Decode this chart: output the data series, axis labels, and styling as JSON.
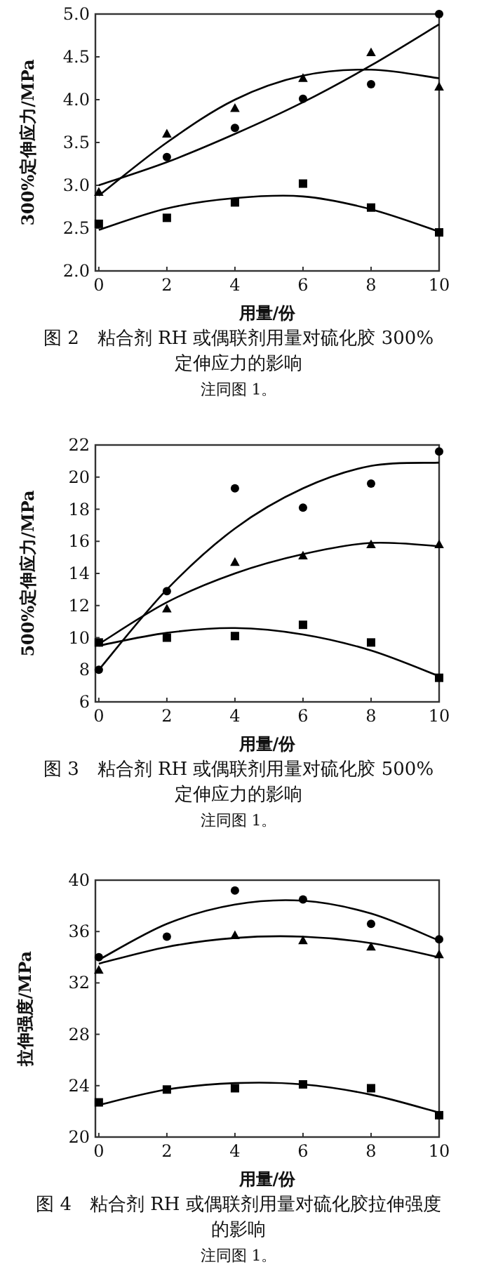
{
  "chart_data": [
    {
      "type": "scatter",
      "title": "图 2　粘合剂 RH 或偶联剂用量对硫化胶 300%定伸应力的影响",
      "xlabel": "用量/份",
      "ylabel": "300%定伸应力/MPa",
      "annotations": [
        "注同图 1。"
      ],
      "x": [
        0,
        2,
        4,
        6,
        8,
        10
      ],
      "xlim": [
        -0.1,
        10
      ],
      "ylim": [
        2.0,
        5.0
      ],
      "xticks": [
        0,
        2,
        4,
        6,
        8,
        10
      ],
      "yticks": [
        {
          "value": 2.0,
          "label": "2.0"
        },
        2.5,
        {
          "value": 3.0,
          "label": "3.0"
        },
        3.5,
        {
          "value": 4.0,
          "label": "4.0"
        },
        4.5,
        {
          "value": 5.0,
          "label": "5.0"
        }
      ],
      "grid": false,
      "series": [
        {
          "type": "scatter",
          "marker": "circle",
          "color": "#000000",
          "values": [
            null,
            3.33,
            3.67,
            4.01,
            4.18,
            5.0
          ]
        },
        {
          "type": "scatter",
          "marker": "triangle",
          "color": "#000000",
          "values": [
            2.92,
            3.6,
            3.9,
            4.25,
            4.55,
            4.15
          ]
        },
        {
          "type": "scatter",
          "marker": "square",
          "color": "#000000",
          "values": [
            2.55,
            2.62,
            2.8,
            3.02,
            2.74,
            2.45
          ]
        },
        {
          "type": "line",
          "marker": "none",
          "color": "#000000",
          "values": [
            3.0,
            3.27,
            3.6,
            3.97,
            4.4,
            4.88
          ]
        },
        {
          "type": "line",
          "marker": "none",
          "color": "#000000",
          "values": [
            2.88,
            3.5,
            4.0,
            4.28,
            4.35,
            4.25
          ]
        },
        {
          "type": "line",
          "marker": "none",
          "color": "#000000",
          "values": [
            2.48,
            2.73,
            2.85,
            2.87,
            2.72,
            2.46
          ]
        }
      ]
    },
    {
      "type": "scatter",
      "title": "图 3　粘合剂 RH 或偶联剂用量对硫化胶 500%定伸应力的影响",
      "xlabel": "用量/份",
      "ylabel": "500%定伸应力/MPa",
      "annotations": [
        "注同图 1。"
      ],
      "x": [
        0,
        2,
        4,
        6,
        8,
        10
      ],
      "xlim": [
        -0.1,
        10
      ],
      "ylim": [
        6,
        22
      ],
      "xticks": [
        0,
        2,
        4,
        6,
        8,
        10
      ],
      "yticks": [
        6,
        8,
        10,
        12,
        14,
        16,
        18,
        20,
        22
      ],
      "grid": false,
      "series": [
        {
          "type": "scatter",
          "marker": "circle",
          "color": "#000000",
          "values": [
            8.0,
            12.9,
            19.3,
            18.1,
            19.6,
            21.6
          ]
        },
        {
          "type": "scatter",
          "marker": "triangle",
          "color": "#000000",
          "values": [
            null,
            11.8,
            14.7,
            15.1,
            15.8,
            15.8
          ]
        },
        {
          "type": "scatter",
          "marker": "square",
          "color": "#000000",
          "values": [
            9.7,
            10.0,
            10.1,
            10.8,
            9.7,
            7.5
          ]
        },
        {
          "type": "line",
          "marker": "none",
          "color": "#000000",
          "values": [
            8.0,
            13.0,
            16.8,
            19.3,
            20.7,
            20.9
          ]
        },
        {
          "type": "line",
          "marker": "none",
          "color": "#000000",
          "values": [
            9.6,
            12.2,
            14.0,
            15.2,
            15.9,
            15.7
          ]
        },
        {
          "type": "line",
          "marker": "none",
          "color": "#000000",
          "values": [
            9.5,
            10.3,
            10.6,
            10.2,
            9.2,
            7.6
          ]
        }
      ]
    },
    {
      "type": "scatter",
      "title": "图 4　粘合剂 RH 或偶联剂用量对硫化胶拉伸强度的影响",
      "xlabel": "用量/份",
      "ylabel": "拉伸强度/MPa",
      "annotations": [
        "注同图 1。"
      ],
      "x": [
        0,
        2,
        4,
        6,
        8,
        10
      ],
      "xlim": [
        -0.1,
        10
      ],
      "ylim": [
        20,
        40
      ],
      "xticks": [
        0,
        2,
        4,
        6,
        8,
        10
      ],
      "yticks": [
        20,
        24,
        28,
        32,
        36,
        40
      ],
      "grid": false,
      "series": [
        {
          "type": "scatter",
          "marker": "circle",
          "color": "#000000",
          "values": [
            34.0,
            35.6,
            39.2,
            38.5,
            36.6,
            35.4
          ]
        },
        {
          "type": "scatter",
          "marker": "triangle",
          "color": "#000000",
          "values": [
            33.0,
            null,
            35.7,
            35.3,
            34.8,
            34.2
          ]
        },
        {
          "type": "scatter",
          "marker": "square",
          "color": "#000000",
          "values": [
            22.7,
            23.7,
            23.8,
            24.1,
            23.8,
            21.7
          ]
        },
        {
          "type": "line",
          "marker": "none",
          "color": "#000000",
          "values": [
            33.8,
            36.6,
            38.1,
            38.4,
            37.4,
            35.3
          ]
        },
        {
          "type": "line",
          "marker": "none",
          "color": "#000000",
          "values": [
            33.5,
            34.8,
            35.5,
            35.6,
            35.1,
            34.0
          ]
        },
        {
          "type": "line",
          "marker": "none",
          "color": "#000000",
          "values": [
            22.5,
            23.7,
            24.2,
            24.1,
            23.3,
            21.9
          ]
        }
      ]
    }
  ]
}
